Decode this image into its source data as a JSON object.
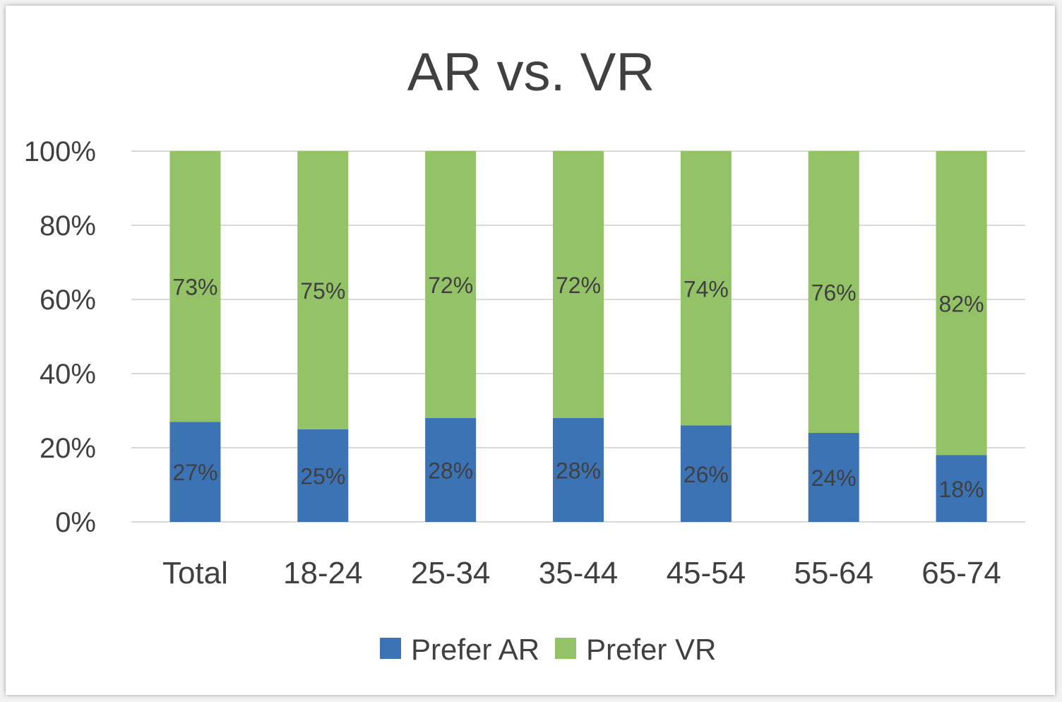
{
  "chart_data": {
    "type": "bar",
    "stacked": true,
    "title": "AR vs. VR",
    "xlabel": "",
    "ylabel": "",
    "ylim": [
      0,
      100
    ],
    "yticks": [
      "0%",
      "20%",
      "40%",
      "60%",
      "80%",
      "100%"
    ],
    "grid": true,
    "legend_position": "bottom",
    "categories": [
      "Total",
      "18-24",
      "25-34",
      "35-44",
      "45-54",
      "55-64",
      "65-74"
    ],
    "series": [
      {
        "name": "Prefer AR",
        "color": "#3b73b5",
        "values": [
          27,
          25,
          28,
          28,
          26,
          24,
          18
        ],
        "labels": [
          "27%",
          "25%",
          "28%",
          "28%",
          "26%",
          "24%",
          "18%"
        ]
      },
      {
        "name": "Prefer VR",
        "color": "#93c267",
        "values": [
          73,
          75,
          72,
          72,
          74,
          76,
          82
        ],
        "labels": [
          "73%",
          "75%",
          "72%",
          "72%",
          "74%",
          "76%",
          "82%"
        ]
      }
    ]
  }
}
